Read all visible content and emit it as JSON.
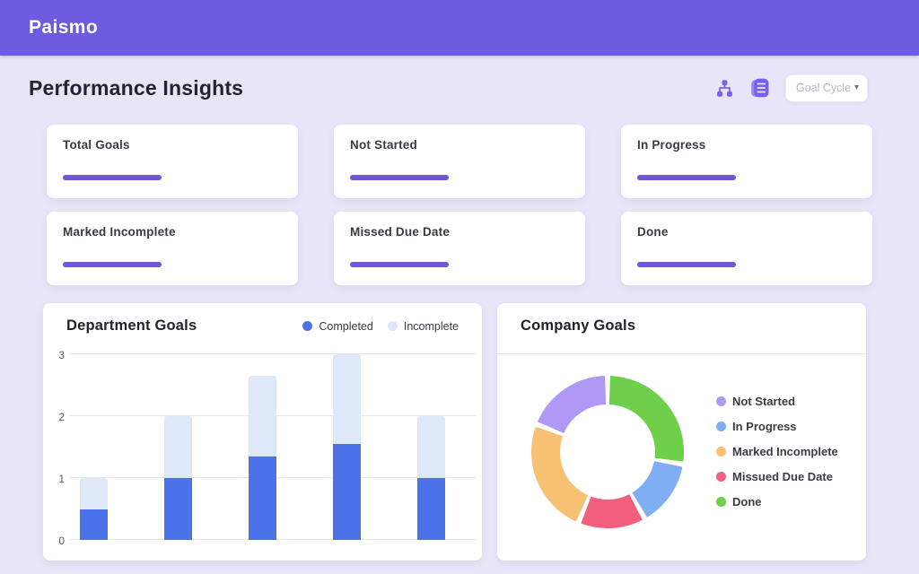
{
  "brand": "Paismo",
  "header": {
    "title": "Performance Insights",
    "goal_cycle": {
      "label": "Goal Cycle",
      "caret_icon": "▾"
    },
    "icons": [
      "org-chart-icon",
      "list-icon"
    ]
  },
  "colors": {
    "topbar": "#6E5BE0",
    "background": "#E9E5F8",
    "accent_line": "#7156D8",
    "icon_purple": "#7A5FF0",
    "card": "#FFFFFF"
  },
  "stat_cards": [
    {
      "title": "Total Goals"
    },
    {
      "title": "Not Started"
    },
    {
      "title": "In Progress"
    },
    {
      "title": "Marked Incomplete"
    },
    {
      "title": "Missed Due Date"
    },
    {
      "title": "Done"
    }
  ],
  "chart_data": [
    {
      "type": "bar",
      "title": "Department Goals",
      "stacked": true,
      "categories": [
        "",
        "",
        "",
        "",
        ""
      ],
      "series": [
        {
          "name": "Completed",
          "color": "#4B72E8",
          "values": [
            0.5,
            1.0,
            1.35,
            1.55,
            1.0
          ]
        },
        {
          "name": "Incomplete",
          "color": "#DFE8F8",
          "values": [
            0.5,
            1.0,
            1.3,
            1.45,
            1.0
          ]
        }
      ],
      "ylim": [
        0,
        3
      ],
      "yticks": [
        0,
        1,
        2,
        3
      ],
      "grid": true,
      "legend_position": "top-right"
    },
    {
      "type": "pie",
      "donut": true,
      "title": "Company Goals",
      "segments": [
        {
          "label": "Done",
          "color": "#6FCF4B",
          "value": 28
        },
        {
          "label": "In Progress",
          "color": "#80AEF2",
          "value": 14
        },
        {
          "label": "Missued Due Date",
          "color": "#F25F7E",
          "value": 14
        },
        {
          "label": "Marked Incomplete",
          "color": "#F6C173",
          "value": 25
        },
        {
          "label": "Not Started",
          "color": "#B099F6",
          "value": 19
        }
      ],
      "legend_order": [
        4,
        1,
        3,
        2,
        0
      ],
      "legend_position": "right"
    }
  ]
}
